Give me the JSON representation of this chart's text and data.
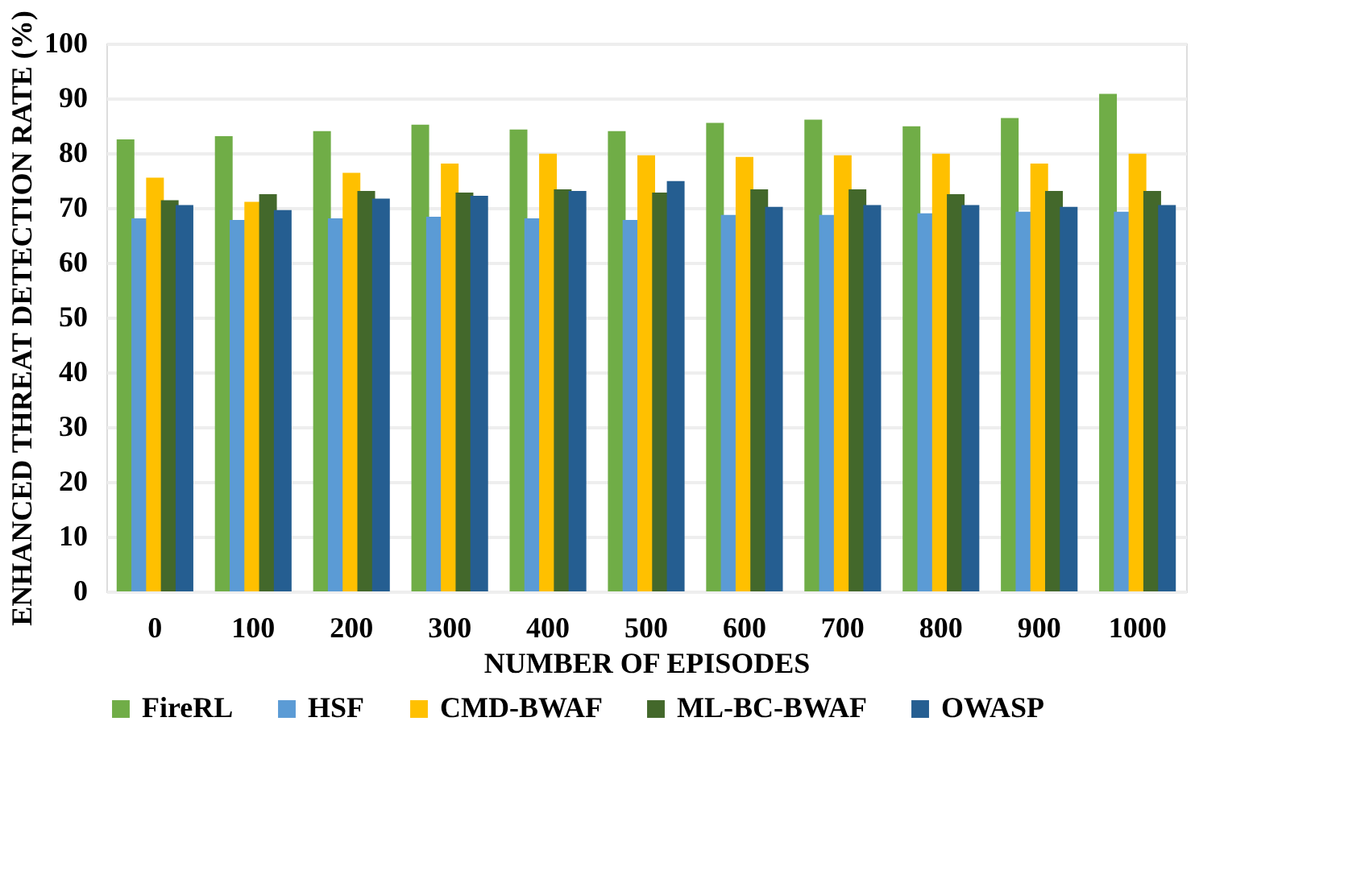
{
  "chart_data": {
    "type": "bar",
    "xlabel": "NUMBER OF EPISODES",
    "ylabel": "ENHANCED THREAT DETECTION RATE (%)",
    "categories": [
      "0",
      "100",
      "200",
      "300",
      "400",
      "500",
      "600",
      "700",
      "800",
      "900",
      "1000"
    ],
    "series": [
      {
        "name": "FireRL",
        "color": "#70ad47",
        "values": [
          82.5,
          83.1,
          84.0,
          85.2,
          84.3,
          84.0,
          85.5,
          86.1,
          84.9,
          86.4,
          90.8
        ]
      },
      {
        "name": "HSF",
        "color": "#5b9bd5",
        "values": [
          68.1,
          67.8,
          68.1,
          68.4,
          68.1,
          67.8,
          68.7,
          68.7,
          69.0,
          69.3,
          69.3
        ]
      },
      {
        "name": "CMD-BWAF",
        "color": "#ffc000",
        "values": [
          75.5,
          71.1,
          76.4,
          78.1,
          79.9,
          79.6,
          79.3,
          79.6,
          79.9,
          78.1,
          79.9
        ]
      },
      {
        "name": "ML-BC-BWAF",
        "color": "#43682b",
        "values": [
          71.4,
          72.5,
          73.1,
          72.8,
          73.4,
          72.8,
          73.4,
          73.4,
          72.5,
          73.1,
          73.1
        ]
      },
      {
        "name": "OWASP",
        "color": "#255e91",
        "values": [
          70.5,
          69.6,
          71.7,
          72.2,
          73.1,
          74.9,
          70.2,
          70.5,
          70.5,
          70.2,
          70.5
        ]
      }
    ],
    "ylim": [
      0,
      100
    ],
    "yticks": [
      0,
      10,
      20,
      30,
      40,
      50,
      60,
      70,
      80,
      90,
      100
    ],
    "grid": "y",
    "legend": "bottom"
  }
}
